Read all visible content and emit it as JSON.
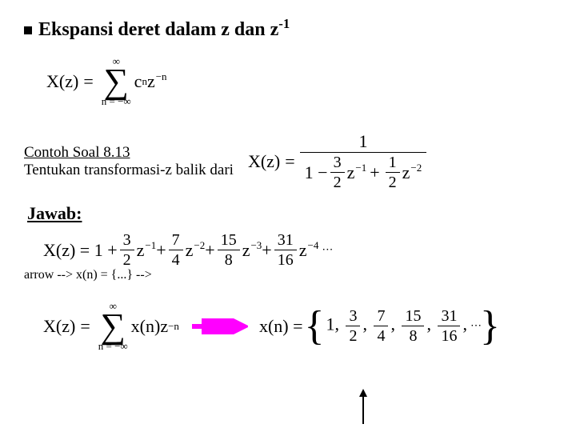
{
  "heading": {
    "bullet": true,
    "text_before_sup": "Ekspansi deret dalam z dan z",
    "sup": "-1"
  },
  "eq1": {
    "lhs": "X(z)",
    "sum_top": "∞",
    "sum_bot": "n = −∞",
    "term_coeff": "c",
    "term_sub": "n",
    "term_base": "z",
    "term_exp": "−n"
  },
  "example": {
    "title": "Contoh Soal 8.13",
    "text": "Tentukan transformasi-z balik dari",
    "rhs": {
      "lhs": "X(z)",
      "numerator": "1",
      "den_lead": "1 −",
      "den_f1_num": "3",
      "den_f1_den": "2",
      "den_z1_exp": "−1",
      "den_plus": "+",
      "den_f2_num": "1",
      "den_f2_den": "2",
      "den_z2_exp": "−2"
    }
  },
  "jawab_label": "Jawab:",
  "expansion": {
    "lhs": "X(z) = 1 +",
    "terms": [
      {
        "num": "3",
        "den": "2",
        "exp": "−1"
      },
      {
        "num": "7",
        "den": "4",
        "exp": "−2"
      },
      {
        "num": "15",
        "den": "8",
        "exp": "−3"
      },
      {
        "num": "31",
        "den": "16",
        "exp": "−4"
      }
    ],
    "trail": "⋯"
  },
  "eq_bottom": {
    "lhs": "X(z)",
    "sum_top": "∞",
    "sum_bot": "n = −∞",
    "term": "x(n)z",
    "term_exp": "−n",
    "arrow_color": "#ff00ff",
    "result_lhs": "x(n) =",
    "seq": [
      "1",
      {
        "num": "3",
        "den": "2"
      },
      {
        "num": "7",
        "den": "4"
      },
      {
        "num": "15",
        "den": "8"
      },
      {
        "num": "31",
        "den": "16"
      }
    ],
    "trail": "⋯"
  },
  "pointer_arrow_color": "#000000",
  "colors": {
    "text": "#000000",
    "background": "#ffffff",
    "arrow": "#ff00ff"
  }
}
